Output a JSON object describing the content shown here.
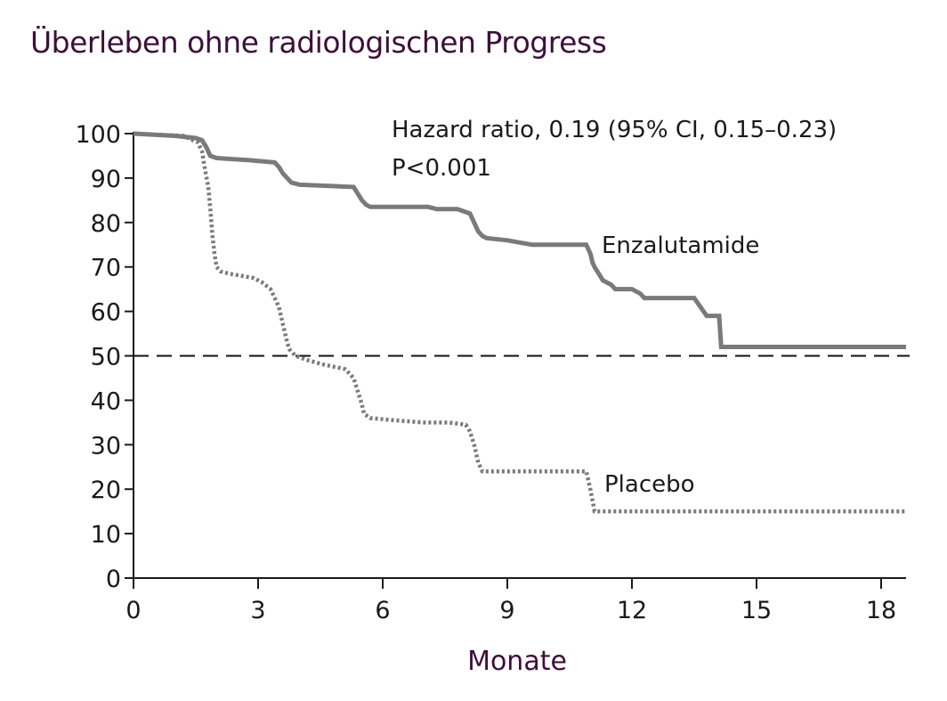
{
  "chart_data": {
    "type": "line",
    "title": "Überleben ohne radiologischen Progress",
    "xlabel": "Monate",
    "ylabel": "",
    "xlim": [
      0,
      18.6
    ],
    "ylim": [
      0,
      100
    ],
    "x_ticks": [
      0,
      3,
      6,
      9,
      12,
      15,
      18
    ],
    "y_ticks": [
      0,
      10,
      20,
      30,
      40,
      50,
      60,
      70,
      80,
      90,
      100
    ],
    "reference_line": {
      "y": 50,
      "style": "dashed"
    },
    "annotations": {
      "hazard_ratio": "Hazard ratio, 0.19 (95% CI, 0.15–0.23)",
      "p_value": "P<0.001"
    },
    "grid": false,
    "series": [
      {
        "name": "Enzalutamide",
        "style": "solid",
        "color": "#7a7a7c",
        "x": [
          0,
          1.0,
          1.5,
          1.65,
          1.75,
          1.85,
          2.0,
          2.3,
          2.8,
          3.4,
          3.5,
          3.6,
          3.7,
          3.8,
          4.0,
          5.3,
          5.4,
          5.5,
          5.6,
          5.7,
          6.0,
          7.1,
          7.3,
          7.8,
          8.1,
          8.2,
          8.3,
          8.4,
          8.5,
          9.0,
          9.3,
          9.6,
          10.9,
          11.0,
          11.05,
          11.1,
          11.2,
          11.3,
          11.5,
          11.6,
          12.0,
          12.2,
          12.3,
          13.5,
          13.8,
          14.1,
          14.15,
          18.6
        ],
        "y": [
          100,
          99.5,
          99,
          98.5,
          97,
          95,
          94.5,
          94.3,
          94,
          93.5,
          92.5,
          91,
          90,
          89,
          88.5,
          88,
          86.5,
          85,
          84,
          83.5,
          83.5,
          83.5,
          83,
          83,
          82,
          80,
          78,
          77,
          76.5,
          76,
          75.5,
          75,
          75,
          73,
          71,
          70,
          68.5,
          67,
          66,
          65,
          65,
          64,
          63,
          63,
          59,
          59,
          52,
          52
        ]
      },
      {
        "name": "Placebo",
        "style": "dotted",
        "color": "#7a7a7c",
        "x": [
          0,
          1.2,
          1.55,
          1.65,
          1.72,
          1.8,
          1.85,
          1.9,
          1.95,
          2.0,
          2.1,
          2.3,
          2.6,
          2.9,
          3.1,
          3.3,
          3.4,
          3.5,
          3.6,
          3.7,
          3.75,
          3.8,
          3.9,
          4.2,
          4.6,
          5.1,
          5.3,
          5.4,
          5.5,
          5.55,
          5.7,
          6.3,
          7.0,
          7.6,
          8.0,
          8.1,
          8.2,
          8.3,
          8.4,
          9.2,
          10.9,
          11.0,
          11.1,
          18.6
        ],
        "y": [
          100,
          99.5,
          98,
          96,
          92,
          88,
          83,
          77,
          73,
          70,
          69,
          68.5,
          68,
          67.5,
          66.5,
          65,
          63,
          61,
          57,
          53,
          51.5,
          51,
          50,
          49,
          48,
          47,
          45,
          42,
          39,
          37,
          36,
          35.5,
          35,
          35,
          34.5,
          33,
          30,
          26,
          24,
          24,
          24,
          20,
          15,
          15
        ]
      }
    ]
  }
}
